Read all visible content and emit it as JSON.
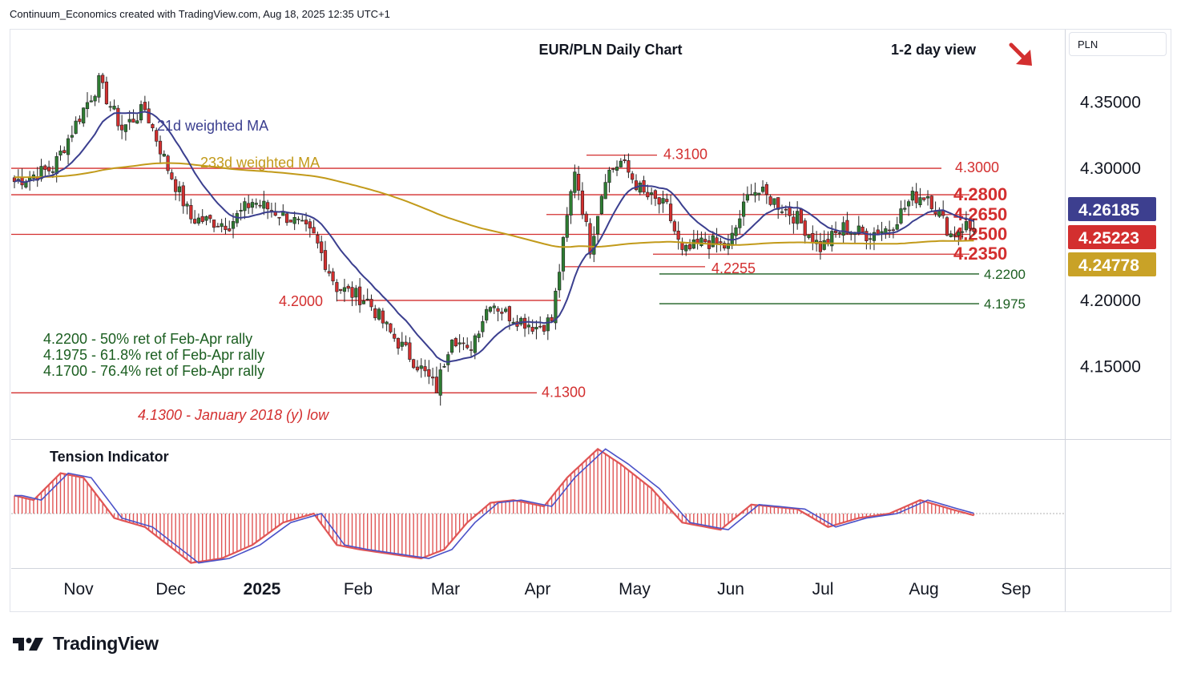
{
  "header": "Continuum_Economics created with TradingView.com, Aug 18, 2025 12:35 UTC+1",
  "currency": "PLN",
  "logo_text": "TradingView",
  "colors": {
    "up": "#2e7d32",
    "down": "#d32f2f",
    "ma21": "#3b3f8f",
    "ma233": "#c29a1a",
    "level": "#d32f2f",
    "retrace": "#1b5e20",
    "tension_fill": "#e05555",
    "tension_line": "#4b52c8",
    "tag_ma21": "#3d3f8f",
    "tag_price": "#d32f2f",
    "tag_ma233": "#c9a227"
  },
  "chart_data": {
    "type": "candlestick",
    "title": "EUR/PLN Daily Chart",
    "view_label": "1-2 day view",
    "view_direction": "down",
    "ylim": [
      4.095,
      4.405
    ],
    "y_ticks": [
      "4.15000",
      "4.20000",
      "4.25000",
      "4.30000",
      "4.35000"
    ],
    "x_ticks": [
      "Nov",
      "Dec",
      "2025",
      "Feb",
      "Mar",
      "Apr",
      "May",
      "Jun",
      "Jul",
      "Aug",
      "Sep"
    ],
    "price_tags": [
      {
        "label": "4.26185",
        "value": 4.26185,
        "color": "#3d3f8f"
      },
      {
        "label": "4.25223",
        "value": 4.25223,
        "color": "#d32f2f"
      },
      {
        "label": "4.24778",
        "value": 4.24778,
        "color": "#c9a227"
      }
    ],
    "ma_labels": {
      "ma21": "21d weighted MA",
      "ma233": "233d weighted MA"
    },
    "levels": [
      {
        "label": "4.3100",
        "value": 4.31,
        "from": "Apr",
        "style": "short"
      },
      {
        "label": "4.3000",
        "value": 4.3
      },
      {
        "label": "4.2800",
        "value": 4.28
      },
      {
        "label": "4.2650",
        "value": 4.265
      },
      {
        "label": "4.2500",
        "value": 4.25
      },
      {
        "label": "4.2350",
        "value": 4.235
      },
      {
        "label": "4.2255",
        "value": 4.2255
      },
      {
        "label": "4.2000",
        "value": 4.2
      },
      {
        "label": "4.1300",
        "value": 4.13
      }
    ],
    "retracements": [
      {
        "label": "4.2200",
        "value": 4.22
      },
      {
        "label": "4.1975",
        "value": 4.1975
      }
    ],
    "notes": [
      "4.2200 - 50% ret of Feb-Apr rally",
      "4.1975 - 61.8% ret of Feb-Apr rally",
      "4.1700 - 76.4% ret of Feb-Apr rally"
    ],
    "low_label": "4.1300 - January 2018 (y) low",
    "indicator_title": "Tension Indicator",
    "anchors": [
      {
        "i": 0,
        "c": 4.29
      },
      {
        "i": 10,
        "c": 4.3
      },
      {
        "i": 18,
        "c": 4.345
      },
      {
        "i": 22,
        "c": 4.365
      },
      {
        "i": 28,
        "c": 4.33
      },
      {
        "i": 34,
        "c": 4.345
      },
      {
        "i": 40,
        "c": 4.3
      },
      {
        "i": 46,
        "c": 4.262
      },
      {
        "i": 56,
        "c": 4.258
      },
      {
        "i": 62,
        "c": 4.275
      },
      {
        "i": 72,
        "c": 4.262
      },
      {
        "i": 78,
        "c": 4.248
      },
      {
        "i": 84,
        "c": 4.21
      },
      {
        "i": 92,
        "c": 4.2
      },
      {
        "i": 98,
        "c": 4.175
      },
      {
        "i": 106,
        "c": 4.148
      },
      {
        "i": 110,
        "c": 4.133
      },
      {
        "i": 114,
        "c": 4.175
      },
      {
        "i": 118,
        "c": 4.16
      },
      {
        "i": 124,
        "c": 4.2
      },
      {
        "i": 128,
        "c": 4.19
      },
      {
        "i": 136,
        "c": 4.18
      },
      {
        "i": 140,
        "c": 4.185
      },
      {
        "i": 146,
        "c": 4.3
      },
      {
        "i": 150,
        "c": 4.24
      },
      {
        "i": 154,
        "c": 4.295
      },
      {
        "i": 158,
        "c": 4.305
      },
      {
        "i": 164,
        "c": 4.28
      },
      {
        "i": 170,
        "c": 4.27
      },
      {
        "i": 174,
        "c": 4.235
      },
      {
        "i": 180,
        "c": 4.245
      },
      {
        "i": 186,
        "c": 4.24
      },
      {
        "i": 192,
        "c": 4.285
      },
      {
        "i": 198,
        "c": 4.275
      },
      {
        "i": 204,
        "c": 4.262
      },
      {
        "i": 210,
        "c": 4.24
      },
      {
        "i": 216,
        "c": 4.255
      },
      {
        "i": 222,
        "c": 4.25
      },
      {
        "i": 228,
        "c": 4.255
      },
      {
        "i": 234,
        "c": 4.278
      },
      {
        "i": 238,
        "c": 4.28
      },
      {
        "i": 244,
        "c": 4.25
      },
      {
        "i": 248,
        "c": 4.257
      },
      {
        "i": 250,
        "c": 4.252
      }
    ],
    "tension_anchors": [
      {
        "i": 0,
        "v": 0.2
      },
      {
        "i": 5,
        "v": 0.15
      },
      {
        "i": 12,
        "v": 0.45
      },
      {
        "i": 18,
        "v": 0.4
      },
      {
        "i": 26,
        "v": -0.05
      },
      {
        "i": 34,
        "v": -0.15
      },
      {
        "i": 46,
        "v": -0.55
      },
      {
        "i": 54,
        "v": -0.5
      },
      {
        "i": 62,
        "v": -0.35
      },
      {
        "i": 70,
        "v": -0.1
      },
      {
        "i": 78,
        "v": 0.0
      },
      {
        "i": 84,
        "v": -0.35
      },
      {
        "i": 90,
        "v": -0.4
      },
      {
        "i": 98,
        "v": -0.45
      },
      {
        "i": 106,
        "v": -0.5
      },
      {
        "i": 112,
        "v": -0.4
      },
      {
        "i": 118,
        "v": -0.1
      },
      {
        "i": 124,
        "v": 0.12
      },
      {
        "i": 130,
        "v": 0.15
      },
      {
        "i": 138,
        "v": 0.08
      },
      {
        "i": 144,
        "v": 0.4
      },
      {
        "i": 152,
        "v": 0.72
      },
      {
        "i": 158,
        "v": 0.55
      },
      {
        "i": 166,
        "v": 0.28
      },
      {
        "i": 174,
        "v": -0.1
      },
      {
        "i": 184,
        "v": -0.18
      },
      {
        "i": 192,
        "v": 0.1
      },
      {
        "i": 204,
        "v": 0.05
      },
      {
        "i": 212,
        "v": -0.15
      },
      {
        "i": 220,
        "v": -0.05
      },
      {
        "i": 228,
        "v": 0.0
      },
      {
        "i": 236,
        "v": 0.15
      },
      {
        "i": 244,
        "v": 0.05
      },
      {
        "i": 250,
        "v": -0.02
      }
    ],
    "tension_ylim": [
      -0.65,
      0.85
    ]
  }
}
